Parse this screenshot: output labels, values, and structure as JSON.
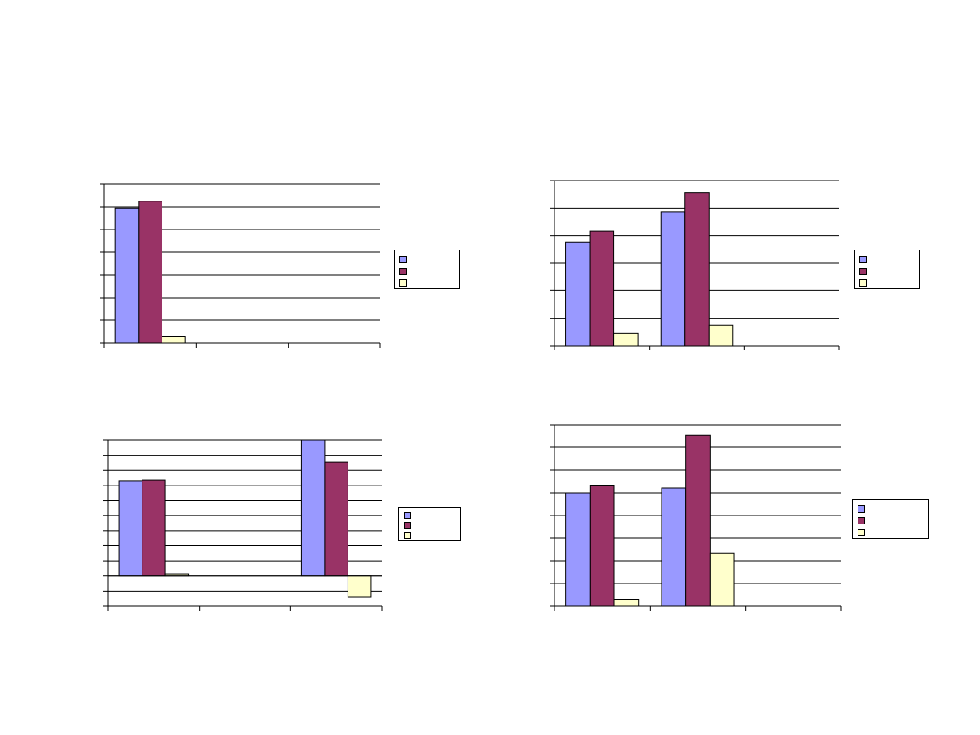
{
  "chart_data": [
    {
      "type": "bar",
      "categories": [
        "",
        "",
        ""
      ],
      "series": [
        {
          "values": [
            5.95,
            0,
            0
          ]
        },
        {
          "values": [
            6.25,
            0,
            0
          ]
        },
        {
          "values": [
            0.3,
            0,
            0
          ]
        }
      ],
      "ylim": [
        0,
        7
      ],
      "grid": true,
      "legend": "right",
      "title": "",
      "xlabel": "",
      "ylabel": ""
    },
    {
      "type": "bar",
      "categories": [
        "",
        "",
        ""
      ],
      "series": [
        {
          "values": [
            3.75,
            4.85,
            0
          ]
        },
        {
          "values": [
            4.15,
            5.55,
            0
          ]
        },
        {
          "values": [
            0.45,
            0.75,
            0
          ]
        }
      ],
      "ylim": [
        0,
        6
      ],
      "grid": true,
      "legend": "right",
      "title": "",
      "xlabel": "",
      "ylabel": ""
    },
    {
      "type": "bar",
      "categories": [
        "",
        "",
        ""
      ],
      "series": [
        {
          "values": [
            6.3,
            0,
            9.0
          ]
        },
        {
          "values": [
            6.35,
            0,
            7.55
          ]
        },
        {
          "values": [
            0.1,
            0,
            -1.4
          ]
        }
      ],
      "ylim": [
        -2,
        9
      ],
      "grid": true,
      "legend": "right",
      "title": "",
      "xlabel": "",
      "ylabel": ""
    },
    {
      "type": "bar",
      "categories": [
        "",
        "",
        ""
      ],
      "series": [
        {
          "values": [
            5.0,
            5.2,
            0
          ]
        },
        {
          "values": [
            5.3,
            7.55,
            0
          ]
        },
        {
          "values": [
            0.3,
            2.35,
            0
          ]
        }
      ],
      "ylim": [
        0,
        8
      ],
      "grid": true,
      "legend": "right",
      "title": "",
      "xlabel": "",
      "ylabel": ""
    }
  ],
  "colors": [
    "#9999ff",
    "#993366",
    "#ffffcc"
  ]
}
